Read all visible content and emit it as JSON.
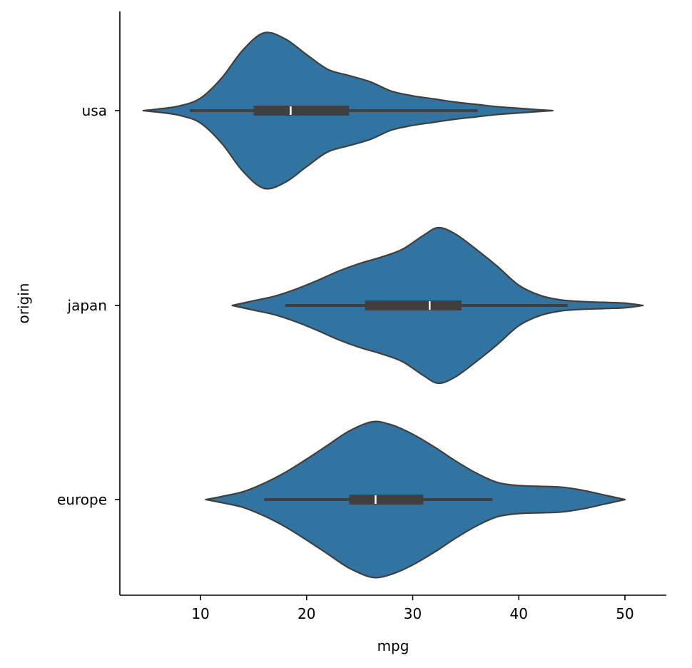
{
  "chart_data": {
    "type": "violin",
    "orientation": "horizontal",
    "title": "",
    "xlabel": "mpg",
    "ylabel": "origin",
    "xlim": [
      2.4,
      53.9
    ],
    "xticks": [
      10,
      20,
      30,
      40,
      50
    ],
    "grid": false,
    "legend": "none",
    "categories": [
      "usa",
      "japan",
      "europe"
    ],
    "colors": {
      "fill": "#3274a1",
      "edge": "#3f3f3f",
      "median": "#ffffff",
      "axis": "#000000"
    },
    "violins": [
      {
        "category": "usa",
        "whisker": [
          9.0,
          36.1
        ],
        "q1": 15.0,
        "median": 18.5,
        "q3": 24.0,
        "profile": [
          [
            4.6,
            0
          ],
          [
            6,
            0.02
          ],
          [
            8,
            0.06
          ],
          [
            10,
            0.16
          ],
          [
            12,
            0.42
          ],
          [
            14,
            0.78
          ],
          [
            16,
            1.0
          ],
          [
            18,
            0.92
          ],
          [
            20,
            0.72
          ],
          [
            22,
            0.53
          ],
          [
            24,
            0.45
          ],
          [
            26,
            0.37
          ],
          [
            28,
            0.25
          ],
          [
            30,
            0.19
          ],
          [
            32,
            0.15
          ],
          [
            34,
            0.11
          ],
          [
            36,
            0.08
          ],
          [
            38,
            0.05
          ],
          [
            40,
            0.03
          ],
          [
            42,
            0.01
          ],
          [
            43.2,
            0
          ]
        ]
      },
      {
        "category": "japan",
        "whisker": [
          18.0,
          44.6
        ],
        "q1": 25.5,
        "median": 31.6,
        "q3": 34.6,
        "profile": [
          [
            13.0,
            0
          ],
          [
            15,
            0.06
          ],
          [
            17,
            0.12
          ],
          [
            19,
            0.21
          ],
          [
            21,
            0.32
          ],
          [
            23,
            0.44
          ],
          [
            25,
            0.54
          ],
          [
            27,
            0.62
          ],
          [
            29,
            0.72
          ],
          [
            31,
            0.9
          ],
          [
            32.4,
            1.0
          ],
          [
            34,
            0.92
          ],
          [
            36,
            0.72
          ],
          [
            38,
            0.5
          ],
          [
            40,
            0.26
          ],
          [
            42,
            0.13
          ],
          [
            44,
            0.07
          ],
          [
            46,
            0.05
          ],
          [
            48,
            0.04
          ],
          [
            50,
            0.03
          ],
          [
            51.7,
            0
          ]
        ]
      },
      {
        "category": "europe",
        "whisker": [
          16.0,
          37.5
        ],
        "q1": 24.0,
        "median": 26.5,
        "q3": 31.0,
        "profile": [
          [
            10.5,
            0
          ],
          [
            12,
            0.04
          ],
          [
            14,
            0.1
          ],
          [
            16,
            0.21
          ],
          [
            18,
            0.35
          ],
          [
            20,
            0.52
          ],
          [
            22,
            0.7
          ],
          [
            24,
            0.88
          ],
          [
            26.2,
            1.0
          ],
          [
            28,
            0.96
          ],
          [
            30,
            0.84
          ],
          [
            32,
            0.68
          ],
          [
            34,
            0.5
          ],
          [
            36,
            0.34
          ],
          [
            38,
            0.22
          ],
          [
            40,
            0.18
          ],
          [
            42,
            0.17
          ],
          [
            44,
            0.16
          ],
          [
            46,
            0.12
          ],
          [
            48,
            0.06
          ],
          [
            50,
            0
          ]
        ]
      }
    ]
  }
}
